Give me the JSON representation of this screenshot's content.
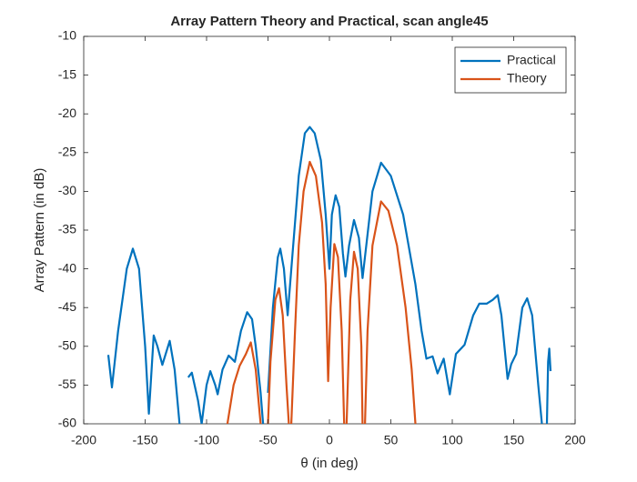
{
  "chart_data": {
    "type": "line",
    "title": "Array Pattern Theory and Practical, scan angle45",
    "x_label": "θ (in deg)",
    "y_label": "Array Pattern (in dB)",
    "xlim": [
      -200,
      200
    ],
    "xticks": [
      -200,
      -150,
      -100,
      -50,
      0,
      50,
      100,
      150,
      200
    ],
    "ylim": [
      -60,
      -10
    ],
    "yticks": [
      -60,
      -55,
      -50,
      -45,
      -40,
      -35,
      -30,
      -25,
      -20,
      -15,
      -10
    ],
    "grid": false,
    "legend": "northeast",
    "series": [
      {
        "name": "Practical",
        "color": "#0072bd",
        "x": [
          -180,
          -177,
          -172,
          -165,
          -160,
          -155,
          -150,
          -147,
          -143,
          -140,
          -136,
          -130,
          -126,
          -122,
          -120,
          -115,
          -112,
          -107,
          -104,
          -100,
          -97,
          -93,
          -91,
          -87,
          -82,
          -77,
          -72,
          -67,
          -63,
          -60,
          -56,
          -54,
          -52,
          -50,
          -46,
          -42,
          -40,
          -37,
          -34,
          -30,
          -25,
          -20,
          -16,
          -12,
          -7,
          -3,
          0,
          2,
          5,
          8,
          11,
          13,
          16,
          20,
          24,
          27,
          30,
          35,
          42,
          50,
          60,
          70,
          75,
          79,
          84,
          88,
          93,
          98,
          103,
          110,
          117,
          122,
          128,
          133,
          137,
          140,
          145,
          148,
          152,
          157,
          161,
          165,
          170,
          173,
          175,
          177,
          178,
          179,
          180
        ],
        "values": [
          -51.1,
          -55.3,
          -48,
          -40,
          -37.4,
          -40,
          -50,
          -58.7,
          -48.6,
          -50,
          -52.4,
          -49.3,
          -53,
          -60,
          null,
          -54,
          -53.4,
          -57,
          -60,
          -55,
          -53.2,
          -55,
          -56.2,
          -53,
          -51.2,
          -52,
          -48,
          -45.6,
          -46.5,
          -50,
          -56,
          -60,
          null,
          -56,
          -45,
          -38.5,
          -37.4,
          -40,
          -46,
          -38,
          -28,
          -22.5,
          -21.7,
          -22.5,
          -26,
          -33,
          -40,
          -33,
          -30.5,
          -32,
          -38,
          -41,
          -37,
          -33.7,
          -36,
          -41.2,
          -37,
          -30,
          -26.3,
          -28,
          -33,
          -42,
          -48,
          -51.6,
          -51.3,
          -53.5,
          -51.6,
          -56.2,
          -51,
          -49.8,
          -46,
          -44.5,
          -44.5,
          -44,
          -43.4,
          -46,
          -54.2,
          -52.3,
          -51,
          -45,
          -43.8,
          -46,
          -55,
          -60,
          null,
          -60,
          -52,
          -50.3,
          -53.2
        ]
      },
      {
        "name": "Theory",
        "color": "#d95319",
        "x": [
          -83,
          -78,
          -73,
          -68,
          -64,
          -60,
          -56,
          -53,
          -50,
          -48,
          -44,
          -41,
          -38,
          -35,
          -33,
          -32,
          -31,
          -28,
          -25,
          -21,
          -16,
          -11,
          -6,
          -3,
          -1,
          1,
          4,
          7,
          10,
          12,
          13,
          14,
          17,
          20,
          23,
          26,
          27,
          28,
          29,
          31,
          35,
          42,
          48,
          55,
          62,
          67,
          70
        ],
        "values": [
          -60,
          -55,
          -52.5,
          -51,
          -49.5,
          -53,
          -60,
          null,
          -60,
          -52,
          -44,
          -42.5,
          -46,
          -55,
          -60,
          null,
          -60,
          -48,
          -37,
          -30,
          -26.2,
          -28,
          -34,
          -42,
          -54.5,
          -45,
          -36.8,
          -38.5,
          -48,
          -60,
          null,
          -60,
          -44,
          -37.8,
          -40,
          -50,
          -60,
          null,
          -60,
          -48,
          -37,
          -31.3,
          -32.5,
          -37,
          -45,
          -53,
          -60
        ]
      }
    ]
  }
}
